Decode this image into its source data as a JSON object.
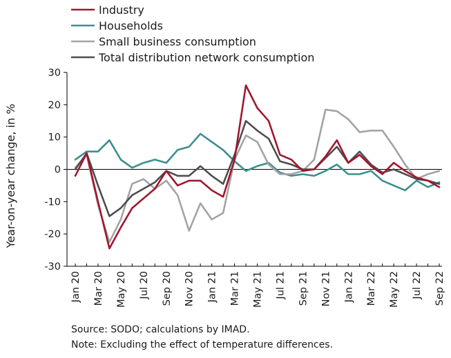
{
  "chart_data": {
    "type": "line",
    "ylabel": "Year-on-year change, in %",
    "ylim": [
      -30,
      30
    ],
    "yticks": [
      -30,
      -20,
      -10,
      0,
      10,
      20,
      30
    ],
    "x": [
      "Jan 20",
      "Feb 20",
      "Mar 20",
      "Apr 20",
      "May 20",
      "Jun 20",
      "Jul 20",
      "Aug 20",
      "Sep 20",
      "Oct 20",
      "Nov 20",
      "Dec 20",
      "Jan 21",
      "Feb 21",
      "Mar 21",
      "Apr 21",
      "May 21",
      "Jun 21",
      "Jul 21",
      "Aug 21",
      "Sep 21",
      "Oct 21",
      "Nov 21",
      "Dec 21",
      "Jan 22",
      "Feb 22",
      "Mar 22",
      "Apr 22",
      "May 22",
      "Jun 22",
      "Jul 22",
      "Aug 22",
      "Sep 22"
    ],
    "xtick_labels": [
      "Jan 20",
      "Mar 20",
      "May 20",
      "Jul 20",
      "Sep 20",
      "Nov 20",
      "Jan 21",
      "Mar 21",
      "May 21",
      "Jul 21",
      "Sep 21",
      "Nov 21",
      "Jan 22",
      "Mar 22",
      "May 22",
      "Jul 22",
      "Sep 22"
    ],
    "grid": false,
    "legend_position": "top",
    "series": [
      {
        "name": "Industry",
        "color": "#a1162e",
        "values": [
          -2,
          5,
          -10,
          -24.5,
          -18,
          -12,
          -9,
          -6,
          -0.5,
          -5,
          -3.5,
          -3.5,
          -6.5,
          -8.5,
          3,
          26,
          19,
          15,
          4.5,
          3,
          -0.5,
          0,
          4,
          9,
          2,
          4.5,
          1,
          -1.5,
          2,
          -0.5,
          -2.5,
          -3.5,
          -5.5
        ]
      },
      {
        "name": "Households",
        "color": "#3a8f8c",
        "values": [
          3,
          5.5,
          5.5,
          9,
          3,
          0.5,
          2,
          3,
          2,
          6,
          7,
          11,
          8.5,
          6,
          2.5,
          -0.5,
          1,
          2,
          -1,
          -2,
          -1.5,
          -2,
          -0.5,
          1.5,
          -1.5,
          -1.5,
          -0.5,
          -3.5,
          -5,
          -6.5,
          -3.5,
          -5.5,
          -4
        ]
      },
      {
        "name": "Small business consumption",
        "color": "#a3a3a3",
        "values": [
          0.5,
          4.5,
          -11,
          -22.5,
          -15.5,
          -4.5,
          -3,
          -6,
          -3.5,
          -8,
          -19,
          -10.5,
          -15.5,
          -13.5,
          3,
          10.5,
          8.5,
          1.5,
          -1.5,
          -1.5,
          -0.5,
          3,
          18.5,
          18,
          15.5,
          11.5,
          12,
          12,
          7,
          1.5,
          -3,
          -1.5,
          -0.5
        ]
      },
      {
        "name": "Total distribution network consumption",
        "color": "#4d4d4d",
        "values": [
          0,
          5,
          -5,
          -14.5,
          -12,
          -8,
          -6,
          -4,
          -0.5,
          -2,
          -2,
          1,
          -2,
          -4.5,
          4.5,
          15,
          12,
          9.5,
          2.5,
          1.5,
          0,
          0,
          3.5,
          7,
          2,
          5.5,
          1.5,
          -1,
          0,
          -1.5,
          -3,
          -3.5,
          -4.5
        ]
      }
    ]
  },
  "footnotes": {
    "source": "Source: SODO; calculations by IMAD.",
    "note": "Note: Excluding the effect of temperature differences."
  }
}
